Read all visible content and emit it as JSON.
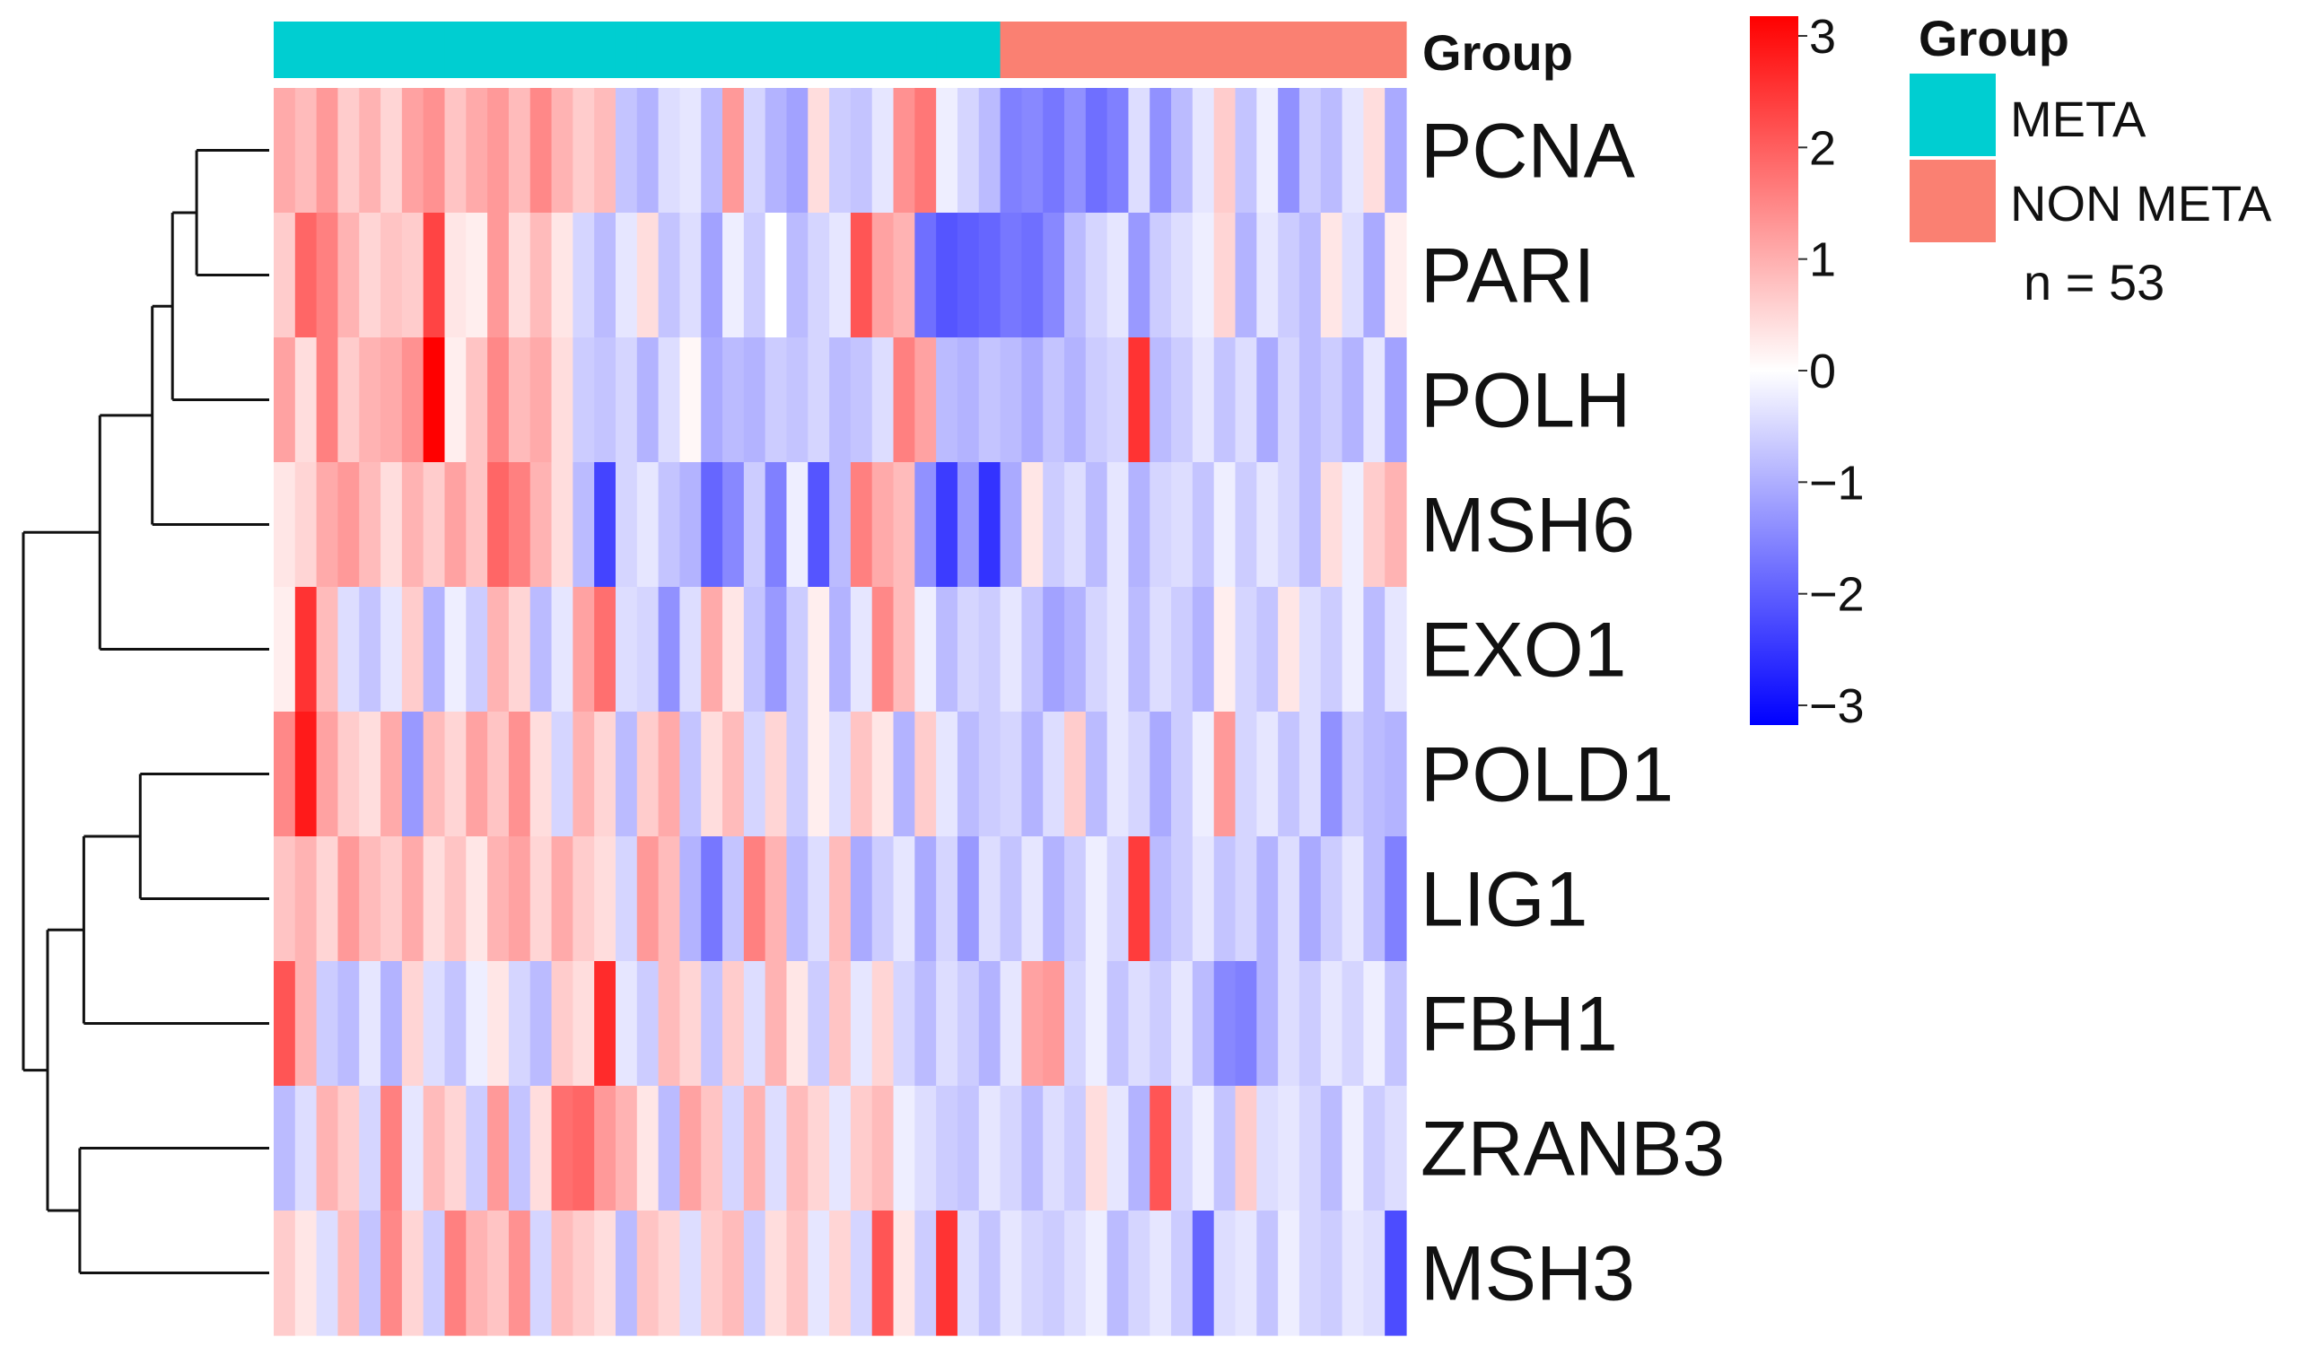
{
  "chart_data": {
    "type": "heatmap",
    "title": "",
    "annotation_track_label": "Group",
    "rows": [
      "PCNA",
      "PARI",
      "POLH",
      "MSH6",
      "EXO1",
      "POLD1",
      "LIG1",
      "FBH1",
      "ZRANB3",
      "MSH3"
    ],
    "n_columns": 53,
    "column_groups": [
      "META",
      "META",
      "META",
      "META",
      "META",
      "META",
      "META",
      "META",
      "META",
      "META",
      "META",
      "META",
      "META",
      "META",
      "META",
      "META",
      "META",
      "META",
      "META",
      "META",
      "META",
      "META",
      "META",
      "META",
      "META",
      "META",
      "META",
      "META",
      "META",
      "META",
      "META",
      "META",
      "META",
      "META",
      "NON META",
      "NON META",
      "NON META",
      "NON META",
      "NON META",
      "NON META",
      "NON META",
      "NON META",
      "NON META",
      "NON META",
      "NON META",
      "NON META",
      "NON META",
      "NON META",
      "NON META",
      "NON META",
      "NON META",
      "NON META",
      "NON META"
    ],
    "values": [
      [
        1.0,
        0.8,
        1.2,
        0.6,
        0.9,
        0.5,
        1.1,
        1.3,
        0.7,
        1.0,
        1.2,
        0.8,
        1.4,
        0.9,
        0.6,
        0.8,
        -0.7,
        -0.9,
        -0.4,
        -0.3,
        -0.8,
        1.2,
        -0.5,
        -0.9,
        -1.1,
        0.4,
        -0.6,
        -0.7,
        -0.3,
        1.3,
        1.6,
        -0.2,
        -0.5,
        -0.8,
        -1.5,
        -1.4,
        -1.6,
        -1.3,
        -1.7,
        -1.5,
        -0.4,
        -1.3,
        -0.8,
        -0.3,
        0.6,
        -0.7,
        -0.2,
        -1.3,
        -0.6,
        -0.8,
        -0.3,
        0.4,
        -1.0
      ],
      [
        0.6,
        1.8,
        1.5,
        0.9,
        0.5,
        0.7,
        0.6,
        2.2,
        0.3,
        0.2,
        1.2,
        0.4,
        0.8,
        0.3,
        -0.5,
        -0.8,
        -0.3,
        0.4,
        -0.7,
        -0.4,
        -1.1,
        -0.2,
        -0.6,
        0.0,
        -0.8,
        -0.5,
        -0.3,
        2.0,
        1.1,
        0.9,
        -1.7,
        -2.0,
        -1.9,
        -1.8,
        -1.6,
        -1.7,
        -1.4,
        -0.8,
        -0.5,
        -0.3,
        -1.2,
        -0.6,
        -0.4,
        -0.2,
        0.5,
        -0.9,
        -0.3,
        -0.6,
        -0.8,
        0.3,
        -0.4,
        -1.0,
        0.2
      ],
      [
        1.1,
        0.4,
        1.5,
        0.6,
        0.9,
        1.0,
        1.3,
        3.0,
        0.2,
        0.7,
        1.4,
        0.8,
        1.0,
        0.4,
        -0.6,
        -0.7,
        -0.5,
        -0.9,
        -0.4,
        0.1,
        -1.0,
        -0.8,
        -0.9,
        -0.6,
        -0.7,
        -0.5,
        -0.8,
        -0.7,
        -0.4,
        1.5,
        1.1,
        -0.8,
        -0.9,
        -0.7,
        -0.8,
        -1.0,
        -0.7,
        -0.9,
        -0.6,
        -0.5,
        2.4,
        -0.8,
        -0.6,
        -0.3,
        -0.7,
        -0.4,
        -1.0,
        -0.5,
        -0.8,
        -0.6,
        -0.9,
        -0.3,
        -1.1
      ],
      [
        0.3,
        0.5,
        1.0,
        1.2,
        0.8,
        0.4,
        0.9,
        0.6,
        1.1,
        0.7,
        1.8,
        1.5,
        0.9,
        0.4,
        -0.8,
        -2.2,
        -0.5,
        -0.3,
        -0.7,
        -0.9,
        -1.8,
        -1.4,
        -0.6,
        -1.5,
        -0.2,
        -2.0,
        -0.8,
        1.5,
        1.0,
        0.8,
        -1.3,
        -2.3,
        -1.2,
        -2.4,
        -1.0,
        0.3,
        -0.6,
        -0.4,
        -0.8,
        -0.3,
        -0.9,
        -0.5,
        -0.4,
        -0.7,
        -0.2,
        -0.6,
        -0.3,
        -0.5,
        -0.8,
        0.4,
        -0.2,
        0.6,
        0.9
      ],
      [
        0.2,
        2.4,
        0.8,
        -0.4,
        -0.7,
        -0.3,
        0.6,
        -0.9,
        -0.2,
        -0.6,
        0.9,
        0.5,
        -0.8,
        -0.3,
        1.1,
        1.7,
        -0.4,
        -0.5,
        -1.3,
        -0.4,
        1.0,
        0.3,
        -0.7,
        -1.2,
        -0.6,
        0.2,
        -0.9,
        -0.3,
        1.4,
        0.8,
        -0.2,
        -0.8,
        -0.5,
        -0.6,
        -0.3,
        -0.7,
        -1.1,
        -0.9,
        -0.5,
        -0.3,
        -0.8,
        -0.4,
        -0.6,
        -0.9,
        0.2,
        -0.5,
        -0.7,
        0.3,
        -0.4,
        -0.6,
        -0.2,
        -0.8,
        -0.3
      ],
      [
        1.4,
        2.7,
        1.1,
        0.6,
        0.4,
        1.0,
        -1.2,
        0.8,
        0.5,
        1.1,
        0.7,
        1.3,
        0.4,
        -0.5,
        0.9,
        0.5,
        -0.8,
        0.6,
        1.0,
        -0.7,
        0.4,
        0.8,
        -0.5,
        0.5,
        -0.6,
        0.2,
        -0.4,
        0.7,
        0.3,
        -0.9,
        0.6,
        -0.3,
        -0.8,
        -0.6,
        -0.5,
        -0.9,
        -0.4,
        0.6,
        -0.8,
        -0.3,
        -0.5,
        -1.0,
        -0.6,
        -0.2,
        1.2,
        -0.5,
        -0.3,
        -0.7,
        -0.4,
        -1.3,
        -0.6,
        -0.8,
        -0.9
      ],
      [
        0.7,
        0.9,
        0.5,
        1.2,
        0.8,
        0.6,
        1.0,
        0.4,
        0.7,
        0.3,
        0.9,
        1.1,
        0.5,
        1.0,
        0.6,
        0.4,
        -0.5,
        1.2,
        0.8,
        -0.9,
        -1.6,
        -0.7,
        1.5,
        0.9,
        -0.8,
        -0.4,
        0.8,
        -1.0,
        -0.6,
        -0.3,
        -1.0,
        -0.5,
        -1.2,
        -0.4,
        -0.7,
        -0.3,
        -0.9,
        -0.6,
        -0.2,
        -0.5,
        2.3,
        -0.8,
        -0.6,
        -0.3,
        -0.7,
        -0.5,
        -0.9,
        -0.4,
        -1.0,
        -0.6,
        -0.3,
        -0.8,
        -1.5
      ],
      [
        2.0,
        0.9,
        -0.6,
        -0.8,
        -0.3,
        -0.9,
        0.5,
        -0.4,
        -0.7,
        -0.2,
        0.3,
        -0.5,
        -0.8,
        0.6,
        0.4,
        2.5,
        -0.3,
        -0.6,
        0.8,
        0.5,
        -0.7,
        0.6,
        -0.4,
        0.9,
        0.3,
        -0.6,
        0.7,
        -0.3,
        0.5,
        -0.5,
        -0.8,
        -0.4,
        -0.6,
        -0.9,
        -0.3,
        1.1,
        1.2,
        -0.5,
        -0.2,
        -0.7,
        -0.4,
        -0.6,
        -0.3,
        -0.8,
        -1.4,
        -1.5,
        -0.9,
        -0.4,
        -0.6,
        -0.3,
        -0.5,
        -0.2,
        -0.7
      ],
      [
        -0.8,
        -0.4,
        0.9,
        0.6,
        -0.5,
        1.5,
        -0.3,
        0.8,
        0.5,
        -0.6,
        1.2,
        -0.7,
        0.4,
        1.7,
        1.8,
        1.2,
        0.9,
        0.3,
        -0.8,
        1.1,
        0.7,
        -0.5,
        0.9,
        -0.4,
        0.8,
        0.5,
        -0.3,
        0.6,
        0.8,
        -0.2,
        -0.4,
        -0.6,
        -0.7,
        -0.3,
        -0.5,
        -0.8,
        -0.4,
        -0.6,
        0.4,
        -0.3,
        -0.9,
        2.0,
        -0.5,
        -0.2,
        -0.7,
        0.6,
        -0.4,
        -0.3,
        -0.5,
        -0.8,
        -0.2,
        -0.6,
        -0.4
      ],
      [
        0.6,
        0.3,
        -0.4,
        0.8,
        -0.7,
        1.4,
        0.5,
        -0.6,
        1.5,
        0.9,
        0.7,
        1.3,
        -0.5,
        0.8,
        0.6,
        0.4,
        -0.8,
        0.7,
        0.5,
        -0.4,
        0.6,
        0.8,
        -0.6,
        0.4,
        0.7,
        -0.3,
        0.5,
        -0.5,
        2.0,
        0.3,
        -0.6,
        2.4,
        -0.4,
        -0.7,
        -0.3,
        -0.5,
        -0.6,
        -0.4,
        -0.2,
        -0.8,
        -0.5,
        -0.3,
        -0.6,
        -1.8,
        -0.4,
        -0.3,
        -0.7,
        -0.2,
        -0.5,
        -0.6,
        -0.3,
        -0.4,
        -2.1
      ]
    ],
    "color_scale": {
      "min": -3,
      "mid": 0,
      "max": 3,
      "low_color": "#0000ff",
      "mid_color": "#ffffff",
      "high_color": "#ff0000",
      "ticks": [
        "3",
        "2",
        "1",
        "0",
        "−1",
        "−2",
        "−3"
      ]
    },
    "group_colors": {
      "META": "#00ced1",
      "NON META": "#fa8072"
    },
    "dendrogram": [
      [
        0,
        1,
        0.18
      ],
      [
        2,
        10,
        0.24
      ],
      [
        3,
        11,
        0.29
      ],
      [
        4,
        12,
        0.42
      ],
      [
        5,
        6,
        0.32
      ],
      [
        7,
        14,
        0.46
      ],
      [
        8,
        9,
        0.47
      ],
      [
        15,
        16,
        0.55
      ],
      [
        13,
        17,
        0.61
      ]
    ]
  },
  "legend": {
    "title": "Group",
    "items": [
      "META",
      "NON META"
    ],
    "note": "n = 53"
  }
}
